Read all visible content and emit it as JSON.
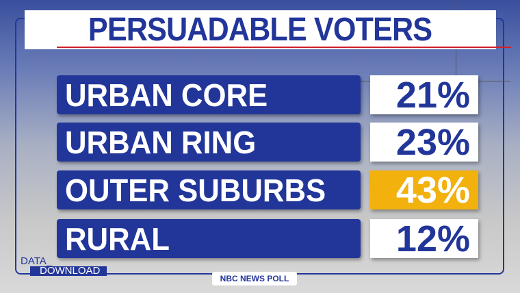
{
  "title": "PERSUADABLE VOTERS",
  "colors": {
    "brand_blue": "#22369a",
    "highlight": "#f2b10d",
    "underline_red": "#d0202a"
  },
  "chart_data": {
    "type": "table",
    "title": "PERSUADABLE VOTERS",
    "rows": [
      {
        "label": "URBAN CORE",
        "value": "21%",
        "highlighted": false
      },
      {
        "label": "URBAN RING",
        "value": "23%",
        "highlighted": false
      },
      {
        "label": "OUTER SUBURBS",
        "value": "43%",
        "highlighted": true
      },
      {
        "label": "RURAL",
        "value": "12%",
        "highlighted": false
      }
    ]
  },
  "logo": {
    "line1": "DATA_",
    "line2": "DOWNLOAD"
  },
  "source": "NBC NEWS POLL"
}
